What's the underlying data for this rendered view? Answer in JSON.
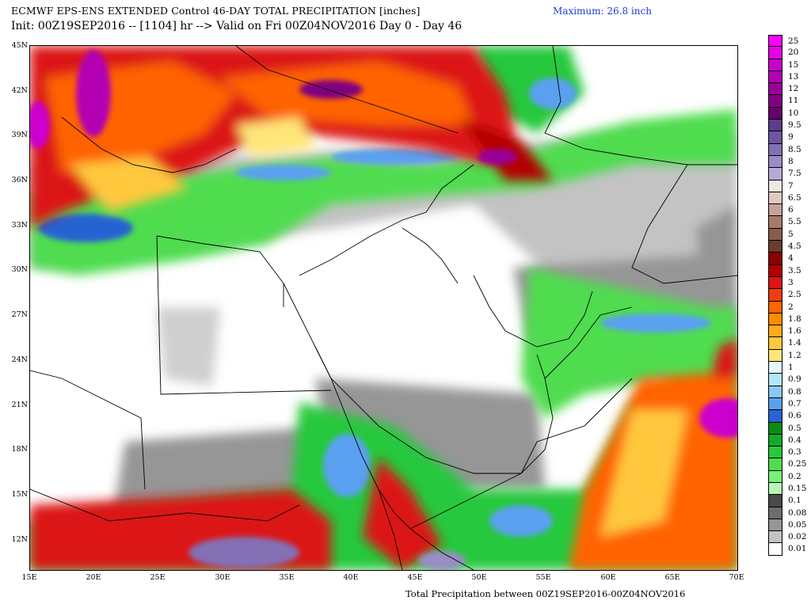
{
  "header": {
    "title_line1": "ECMWF EPS-ENS EXTENDED Control 46-DAY TOTAL PRECIPITATION [inches]",
    "title_line2": "Init: 00Z19SEP2016 -- [1104] hr --> Valid on Fri 00Z04NOV2016  Day 0 - Day 46",
    "maximum": "Maximum: 26.8 inch"
  },
  "footer": {
    "caption": "Total Precipitation between 00Z19SEP2016-00Z04NOV2016"
  },
  "axes": {
    "lat_labels": [
      "45N",
      "42N",
      "39N",
      "36N",
      "33N",
      "30N",
      "27N",
      "24N",
      "21N",
      "18N",
      "15N",
      "12N"
    ],
    "lon_labels": [
      "15E",
      "20E",
      "25E",
      "30E",
      "35E",
      "40E",
      "45E",
      "50E",
      "55E",
      "60E",
      "65E",
      "70E"
    ]
  },
  "legend": {
    "items": [
      {
        "label": "25",
        "color": "#ff00ff"
      },
      {
        "label": "20",
        "color": "#e600e6"
      },
      {
        "label": "15",
        "color": "#cc00cc"
      },
      {
        "label": "13",
        "color": "#b300b3"
      },
      {
        "label": "12",
        "color": "#990099"
      },
      {
        "label": "11",
        "color": "#800080"
      },
      {
        "label": "10",
        "color": "#660066"
      },
      {
        "label": "9.5",
        "color": "#5a3d8c"
      },
      {
        "label": "9",
        "color": "#6e55a0"
      },
      {
        "label": "8.5",
        "color": "#8470b4"
      },
      {
        "label": "8",
        "color": "#9a8cc6"
      },
      {
        "label": "7.5",
        "color": "#b4aad6"
      },
      {
        "label": "7",
        "color": "#f2e6e6"
      },
      {
        "label": "6.5",
        "color": "#e2c8c2"
      },
      {
        "label": "6",
        "color": "#c8a096"
      },
      {
        "label": "5.5",
        "color": "#a87a6c"
      },
      {
        "label": "5",
        "color": "#8a5c4c"
      },
      {
        "label": "4.5",
        "color": "#6a3c30"
      },
      {
        "label": "4",
        "color": "#8c0000"
      },
      {
        "label": "3.5",
        "color": "#b40000"
      },
      {
        "label": "3",
        "color": "#dc1414"
      },
      {
        "label": "2.5",
        "color": "#f03c14"
      },
      {
        "label": "2",
        "color": "#ff6400"
      },
      {
        "label": "1.8",
        "color": "#ff8c00"
      },
      {
        "label": "1.6",
        "color": "#ffaa1e"
      },
      {
        "label": "1.4",
        "color": "#ffc83c"
      },
      {
        "label": "1.2",
        "color": "#ffe678"
      },
      {
        "label": "1",
        "color": "#e6f8ff"
      },
      {
        "label": "0.9",
        "color": "#b4e6ff"
      },
      {
        "label": "0.8",
        "color": "#8cc8f0"
      },
      {
        "label": "0.7",
        "color": "#5aa0f0"
      },
      {
        "label": "0.6",
        "color": "#2864d2"
      },
      {
        "label": "0.5",
        "color": "#0a8c14"
      },
      {
        "label": "0.4",
        "color": "#14aa28"
      },
      {
        "label": "0.3",
        "color": "#28c83c"
      },
      {
        "label": "0.25",
        "color": "#50dc50"
      },
      {
        "label": "0.2",
        "color": "#78f078"
      },
      {
        "label": "0.15",
        "color": "#b4f8b4"
      },
      {
        "label": "0.1",
        "color": "#4a4a4a"
      },
      {
        "label": "0.08",
        "color": "#6e6e6e"
      },
      {
        "label": "0.05",
        "color": "#969696"
      },
      {
        "label": "0.02",
        "color": "#c3c3c3"
      },
      {
        "label": "0.01",
        "color": "#ffffff"
      }
    ]
  }
}
